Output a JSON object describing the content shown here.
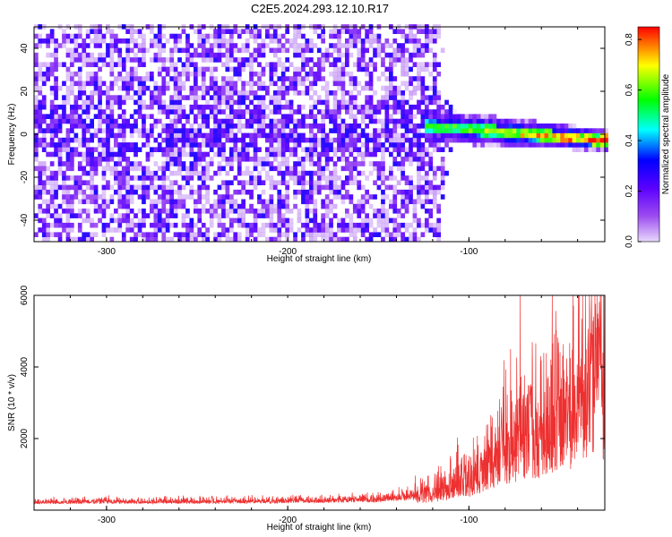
{
  "title": "C2E5.2024.293.12.10.R17",
  "chart_data": [
    {
      "type": "heatmap",
      "xlabel": "Height of straight line (km)",
      "ylabel": "Frequency (Hz)",
      "xlim": [
        -340,
        -25
      ],
      "ylim": [
        -50,
        50
      ],
      "xticks": [
        -300,
        -200,
        -100
      ],
      "yticks": [
        40,
        20,
        0,
        -20,
        -40
      ],
      "colorbar": {
        "label": "Normalized spectral amplitude",
        "range": [
          0,
          0.85
        ],
        "ticks": [
          0.0,
          0.2,
          0.4,
          0.6,
          0.8
        ],
        "colormap": [
          "#e8d8fc",
          "#9c4bf0",
          "#5a00ff",
          "#0000ff",
          "#00ffff",
          "#00ff00",
          "#ffff00",
          "#ff0000"
        ]
      },
      "signal": {
        "band_start_km": -125,
        "band_end_km": -25,
        "center_freq_start_hz": 3,
        "center_freq_end_hz": -4,
        "noise_cutoff_km": -120
      }
    },
    {
      "type": "line",
      "xlabel": "Height of straight line (km)",
      "ylabel": "SNR (10 * v/v)",
      "xlim": [
        -340,
        -25
      ],
      "ylim": [
        0,
        6000
      ],
      "xticks": [
        -300,
        -200,
        -100
      ],
      "yticks": [
        2000,
        4000,
        6000
      ],
      "color": "#ee3030",
      "envelope": [
        {
          "x": -340,
          "y": 230
        },
        {
          "x": -300,
          "y": 260
        },
        {
          "x": -250,
          "y": 260
        },
        {
          "x": -200,
          "y": 300
        },
        {
          "x": -150,
          "y": 380
        },
        {
          "x": -120,
          "y": 600
        },
        {
          "x": -100,
          "y": 1000
        },
        {
          "x": -90,
          "y": 1500
        },
        {
          "x": -75,
          "y": 2200
        },
        {
          "x": -60,
          "y": 2500
        },
        {
          "x": -45,
          "y": 3000
        },
        {
          "x": -30,
          "y": 4800
        },
        {
          "x": -25,
          "y": 3500
        }
      ],
      "peaks": [
        {
          "x": -82,
          "y": 3100
        },
        {
          "x": -66,
          "y": 4100
        },
        {
          "x": -45,
          "y": 3700
        },
        {
          "x": -30,
          "y": 5500
        },
        {
          "x": -28,
          "y": 6000
        }
      ]
    }
  ]
}
